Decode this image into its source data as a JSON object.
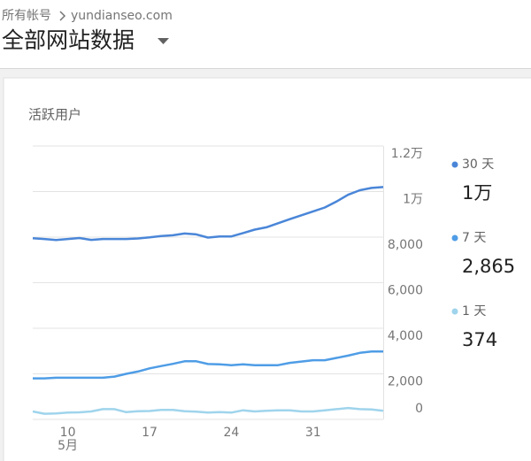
{
  "header": {
    "breadcrumb": "所有帐号",
    "account": "yundianseo.com",
    "title": "全部网站数据"
  },
  "chart_data": {
    "type": "line",
    "title": "活跃用户",
    "categories": [
      null,
      null,
      null,
      "10",
      null,
      null,
      null,
      null,
      null,
      null,
      "17",
      null,
      null,
      null,
      null,
      null,
      null,
      "24",
      null,
      null,
      null,
      null,
      null,
      null,
      "31",
      null,
      null,
      null,
      null,
      null,
      null
    ],
    "month_label": "5月",
    "series": [
      {
        "name": "30 天",
        "total_label": "1万",
        "color": "#4a86d8",
        "values": [
          7950,
          7920,
          7870,
          7920,
          7960,
          7880,
          7920,
          7920,
          7920,
          7940,
          7990,
          8050,
          8080,
          8160,
          8120,
          7980,
          8030,
          8030,
          8180,
          8330,
          8430,
          8610,
          8790,
          8960,
          9130,
          9300,
          9560,
          9860,
          10060,
          10160,
          10200
        ]
      },
      {
        "name": "7 天",
        "total_label": "2,865",
        "color": "#4f9de6",
        "values": [
          1800,
          1800,
          1830,
          1830,
          1830,
          1830,
          1830,
          1880,
          2000,
          2100,
          2240,
          2340,
          2440,
          2550,
          2550,
          2430,
          2420,
          2380,
          2420,
          2380,
          2380,
          2380,
          2480,
          2540,
          2600,
          2600,
          2700,
          2800,
          2920,
          2980,
          2980
        ]
      },
      {
        "name": "1 天",
        "total_label": "374",
        "color": "#9fd4ec",
        "values": [
          350,
          250,
          260,
          300,
          310,
          350,
          450,
          450,
          320,
          360,
          370,
          420,
          420,
          360,
          340,
          300,
          320,
          300,
          400,
          350,
          380,
          400,
          400,
          350,
          350,
          400,
          450,
          500,
          450,
          440,
          380
        ]
      }
    ],
    "ylim": [
      0,
      12000
    ],
    "yticks": [
      0,
      {
        "value": 2000,
        "label": "2,000"
      },
      {
        "value": 4000,
        "label": "4,000"
      },
      {
        "value": 6000,
        "label": "6,000"
      },
      {
        "value": 8000,
        "label": "8,000"
      },
      {
        "value": 10000,
        "label": "1万"
      },
      {
        "value": 12000,
        "label": "1.2万"
      }
    ],
    "grid": true
  }
}
